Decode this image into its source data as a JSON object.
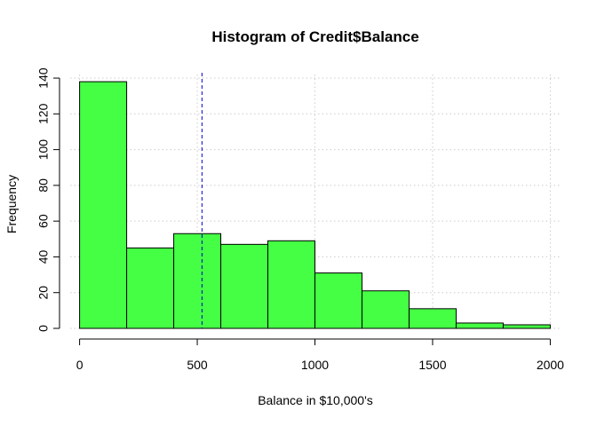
{
  "chart_data": {
    "type": "bar",
    "subtype": "histogram",
    "title": "Histogram of Credit$Balance",
    "xlabel": "Balance in $10,000's",
    "ylabel": "Frequency",
    "bins": [
      {
        "from": 0,
        "to": 200,
        "count": 138
      },
      {
        "from": 200,
        "to": 400,
        "count": 45
      },
      {
        "from": 400,
        "to": 600,
        "count": 53
      },
      {
        "from": 600,
        "to": 800,
        "count": 47
      },
      {
        "from": 800,
        "to": 1000,
        "count": 49
      },
      {
        "from": 1000,
        "to": 1200,
        "count": 31
      },
      {
        "from": 1200,
        "to": 1400,
        "count": 21
      },
      {
        "from": 1400,
        "to": 1600,
        "count": 11
      },
      {
        "from": 1600,
        "to": 1800,
        "count": 3
      },
      {
        "from": 1800,
        "to": 2000,
        "count": 2
      }
    ],
    "xlim": [
      -40,
      2040
    ],
    "ylim": [
      0,
      142
    ],
    "x_ticks": [
      0,
      500,
      1000,
      1500,
      2000
    ],
    "y_ticks": [
      0,
      20,
      40,
      60,
      80,
      100,
      120,
      140
    ],
    "reference_line": {
      "x": 520,
      "style": "dashed",
      "color": "#0000CD"
    },
    "grid": true,
    "grid_color": "#cccccc",
    "bar_fill": "#44FF44",
    "bar_stroke": "#000000"
  }
}
